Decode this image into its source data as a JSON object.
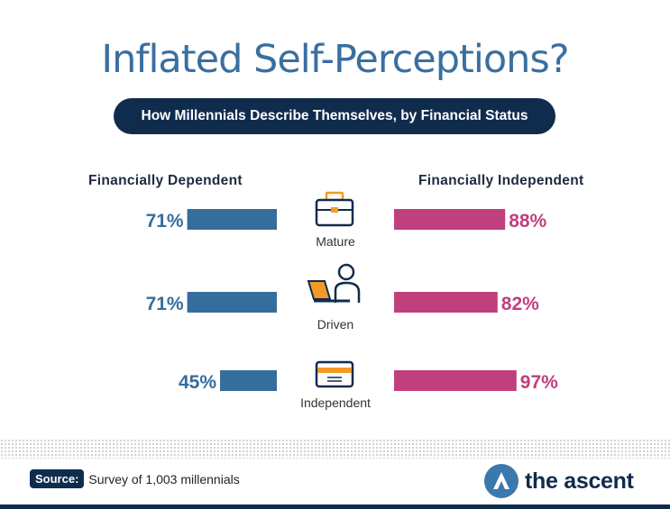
{
  "title": "Inflated Self-Perceptions?",
  "subtitle": "How Millennials Describe Themselves, by Financial Status",
  "chart_data": {
    "type": "bar",
    "title": "Inflated Self-Perceptions?",
    "subtitle": "How Millennials Describe Themselves, by Financial Status",
    "categories": [
      "Mature",
      "Driven",
      "Independent"
    ],
    "category_icons": [
      "briefcase-icon",
      "person-at-laptop-icon",
      "credit-card-icon"
    ],
    "series": [
      {
        "name": "Financially Dependent",
        "values": [
          71,
          71,
          45
        ],
        "labels": [
          "71%",
          "71%",
          "45%"
        ],
        "color": "#356d9d",
        "direction": "left"
      },
      {
        "name": "Financially Independent",
        "values": [
          88,
          82,
          97
        ],
        "labels": [
          "88%",
          "82%",
          "97%"
        ],
        "color": "#c0407e",
        "direction": "right"
      }
    ],
    "value_unit": "%",
    "xlim": [
      0,
      100
    ],
    "grid": false,
    "legend": "column headers at top-left and top-right"
  },
  "footer": {
    "source_label": "Source:",
    "source_text": "Survey of 1,003 millennials",
    "brand": "the ascent"
  },
  "colors": {
    "title": "#3a6fa0",
    "navy": "#102c4c",
    "dependent": "#356d9d",
    "independent": "#c0407e",
    "icon_orange": "#f39a25"
  }
}
